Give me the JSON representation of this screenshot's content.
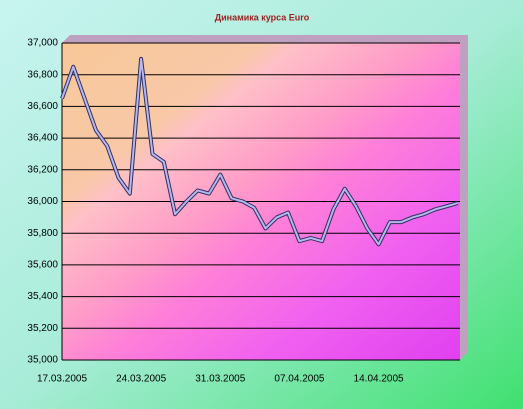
{
  "chart_data": {
    "type": "line",
    "title": "Динамика курса Euro",
    "categories": [
      "17.03.2005",
      null,
      null,
      null,
      null,
      null,
      null,
      "24.03.2005",
      null,
      null,
      null,
      null,
      null,
      null,
      "31.03.2005",
      null,
      null,
      null,
      null,
      null,
      null,
      "07.04.2005",
      null,
      null,
      null,
      null,
      null,
      null,
      "14.04.2005",
      null,
      null,
      null,
      null,
      null,
      null,
      null
    ],
    "series": [
      {
        "name": "Euro",
        "color": "#b8b8f0",
        "values": [
          36.65,
          36.85,
          36.65,
          36.45,
          36.35,
          36.15,
          36.05,
          36.9,
          36.3,
          36.25,
          35.92,
          36.0,
          36.07,
          36.05,
          36.17,
          36.02,
          36.0,
          35.96,
          35.83,
          35.9,
          35.93,
          35.75,
          35.77,
          35.75,
          35.95,
          36.08,
          35.97,
          35.83,
          35.73,
          35.87,
          35.87,
          35.9,
          35.92,
          35.95,
          35.97,
          35.99
        ]
      }
    ],
    "ylim": [
      35,
      37
    ],
    "yticks": [
      {
        "value": 35,
        "label": "35,000"
      },
      {
        "value": 35.2,
        "label": "35,200"
      },
      {
        "value": 35.4,
        "label": "35,400"
      },
      {
        "value": 35.6,
        "label": "35,600"
      },
      {
        "value": 35.8,
        "label": "35,800"
      },
      {
        "value": 36,
        "label": "36,000"
      },
      {
        "value": 36.2,
        "label": "36,200"
      },
      {
        "value": 36.4,
        "label": "36,400"
      },
      {
        "value": 36.6,
        "label": "36,600"
      },
      {
        "value": 36.8,
        "label": "36,800"
      },
      {
        "value": 37,
        "label": "37,000"
      }
    ],
    "grid": true
  }
}
